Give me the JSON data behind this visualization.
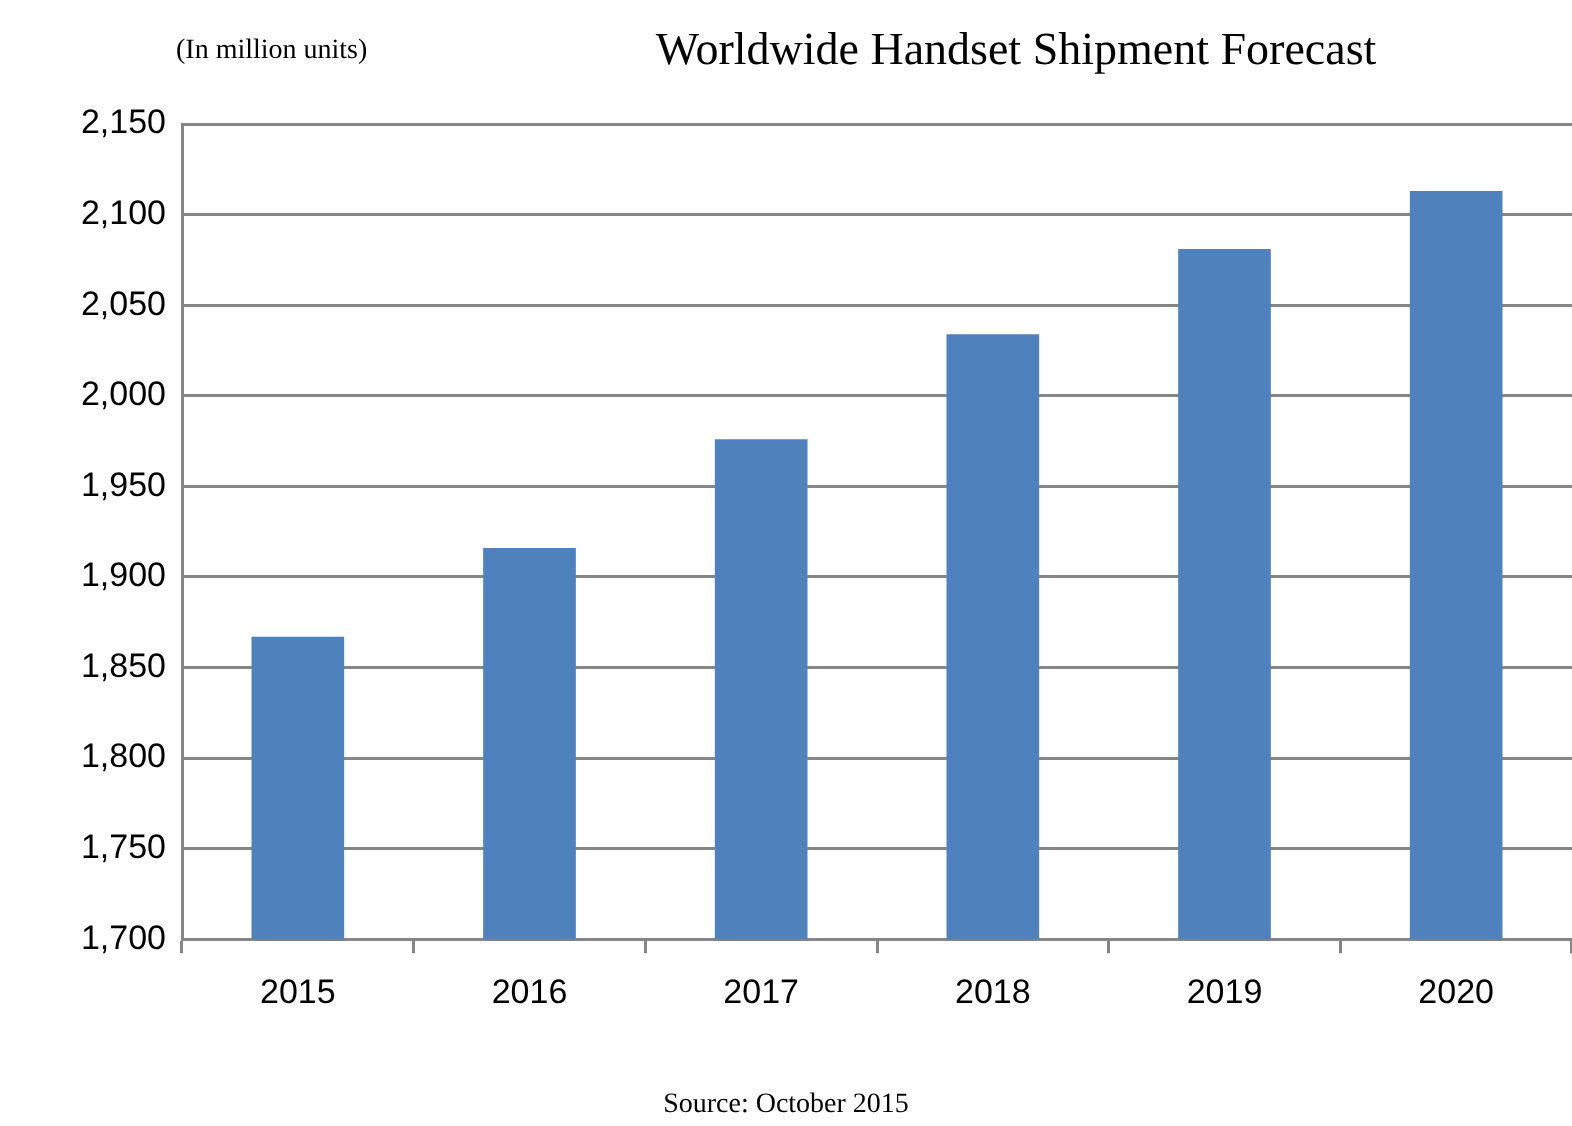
{
  "chart_data": {
    "type": "bar",
    "title": "Worldwide Handset Shipment Forecast",
    "ylabel": "(In million units)",
    "categories": [
      "2015",
      "2016",
      "2017",
      "2018",
      "2019",
      "2020"
    ],
    "values": [
      1867,
      1916,
      1976,
      2034,
      2081,
      2113
    ],
    "color": "#4f81bd",
    "ylim": [
      1700,
      2150
    ],
    "yticks": [
      {
        "value": 1700,
        "label": "1,700"
      },
      {
        "value": 1750,
        "label": "1,750"
      },
      {
        "value": 1800,
        "label": "1,800"
      },
      {
        "value": 1850,
        "label": "1,850"
      },
      {
        "value": 1900,
        "label": "1,900"
      },
      {
        "value": 1950,
        "label": "1,950"
      },
      {
        "value": 2000,
        "label": "2,000"
      },
      {
        "value": 2050,
        "label": "2,050"
      },
      {
        "value": 2100,
        "label": "2,100"
      },
      {
        "value": 2150,
        "label": "2,150"
      }
    ],
    "grid": "y",
    "legend": false,
    "annotations": [
      "Source: October 2015"
    ]
  }
}
